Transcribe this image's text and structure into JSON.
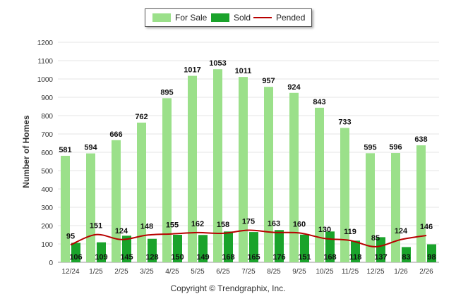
{
  "chart_data": {
    "type": "bar",
    "categories": [
      "12/24",
      "1/25",
      "2/25",
      "3/25",
      "4/25",
      "5/25",
      "6/25",
      "7/25",
      "8/25",
      "9/25",
      "10/25",
      "11/25",
      "12/25",
      "1/26",
      "2/26"
    ],
    "series": [
      {
        "name": "For Sale",
        "type": "bar",
        "color": "#9be08a",
        "values": [
          581,
          594,
          666,
          762,
          895,
          1017,
          1053,
          1011,
          957,
          924,
          843,
          733,
          595,
          596,
          638
        ]
      },
      {
        "name": "Sold",
        "type": "bar",
        "color": "#1aa32b",
        "values": [
          106,
          109,
          145,
          128,
          150,
          149,
          168,
          165,
          176,
          151,
          168,
          118,
          137,
          83,
          98
        ]
      },
      {
        "name": "Pended",
        "type": "line",
        "color": "#b80000",
        "values": [
          95,
          151,
          124,
          148,
          155,
          162,
          158,
          175,
          163,
          160,
          130,
          119,
          85,
          124,
          146
        ]
      }
    ],
    "ylabel": "Number of Homes",
    "xlabel": "",
    "ylim": [
      0,
      1200
    ],
    "yticks": [
      0,
      100,
      200,
      300,
      400,
      500,
      600,
      700,
      800,
      900,
      1000,
      1100,
      1200
    ],
    "grid": true,
    "legend_position": "top-center"
  },
  "legend": {
    "for_sale": "For Sale",
    "sold": "Sold",
    "pended": "Pended"
  },
  "footer": {
    "copyright": "Copyright © Trendgraphix, Inc."
  }
}
